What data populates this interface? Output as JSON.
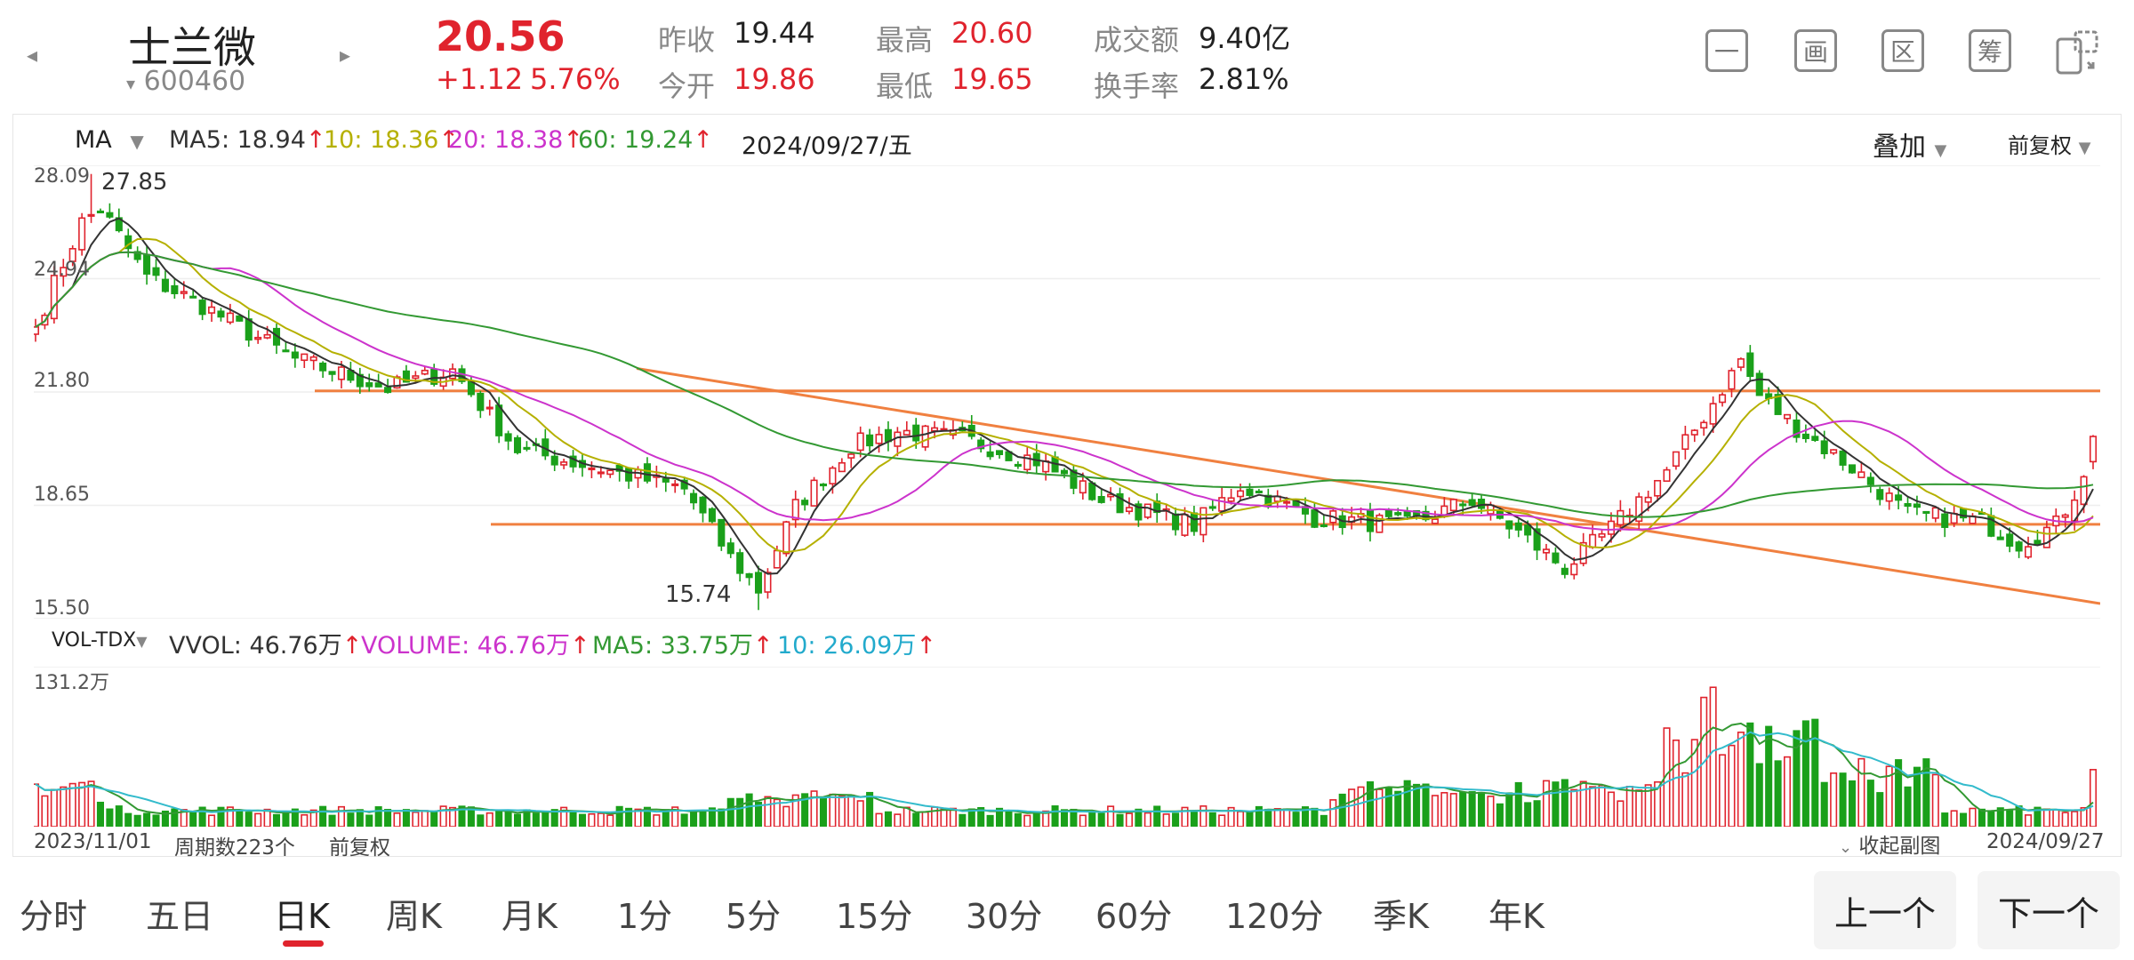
{
  "stock": {
    "name": "士兰微",
    "code": "600460",
    "price": "20.56",
    "change": "+1.12",
    "change_pct": "5.76%",
    "prev_close_label": "昨收",
    "prev_close": "19.44",
    "open_label": "今开",
    "open": "19.86",
    "high_label": "最高",
    "high": "20.60",
    "low_label": "最低",
    "low": "19.65",
    "turnover_label": "成交额",
    "turnover": "9.40亿",
    "turnover_rate_label": "换手率",
    "turnover_rate": "2.81%"
  },
  "toolbar": {
    "icons": [
      {
        "name": "minus-box-icon",
        "glyph": "一"
      },
      {
        "name": "draw-box-icon",
        "glyph": "画"
      },
      {
        "name": "range-box-icon",
        "glyph": "区"
      },
      {
        "name": "chip-box-icon",
        "glyph": "筹"
      },
      {
        "name": "landscape-rotate-icon",
        "glyph": ""
      }
    ]
  },
  "indicator_bar": {
    "main_indicator": "MA",
    "ma5": "MA5: 18.94",
    "ma10": "10: 18.36",
    "ma20": "20: 18.38",
    "ma60": "60: 19.24",
    "date": "2024/09/27/五",
    "overlay": "叠加",
    "adjust": "前复权"
  },
  "price_axis": {
    "ticks": [
      "28.09",
      "24.94",
      "21.80",
      "18.65",
      "15.50"
    ],
    "max_label": "27.85",
    "min_label": "15.74"
  },
  "volume_bar": {
    "indicator": "VOL-TDX",
    "vvol": "VVOL: 46.76万",
    "volume": "VOLUME: 46.76万",
    "ma5": "MA5: 33.75万",
    "ma10": "10: 26.09万",
    "axis_max": "131.2万"
  },
  "footer": {
    "start_date": "2023/11/01",
    "period_count": "周期数223个",
    "adjust": "前复权",
    "collapse": "收起副图",
    "end_date": "2024/09/27"
  },
  "tabs": [
    "分时",
    "五日",
    "日K",
    "周K",
    "月K",
    "1分",
    "5分",
    "15分",
    "30分",
    "60分",
    "120分",
    "季K",
    "年K"
  ],
  "active_tab": "日K",
  "nav": {
    "prev": "上一个",
    "next": "下一个"
  },
  "colors": {
    "up": "#e0232d",
    "down": "#1aa01a",
    "ma5": "#333333",
    "ma10": "#b5b000",
    "ma20": "#cc33cc",
    "ma60": "#339933",
    "vol_ma5": "#339933",
    "vol_ma10": "#33bbcc",
    "trendline": "#f08040"
  },
  "chart_data": {
    "type": "candlestick",
    "x_range": [
      "2023/11/01",
      "2024/09/27"
    ],
    "period_count": 223,
    "ylim": [
      15.5,
      28.09
    ],
    "close_anchors": [
      [
        0,
        23.6
      ],
      [
        2,
        24.8
      ],
      [
        5,
        26.5
      ],
      [
        7,
        26.9
      ],
      [
        12,
        25.0
      ],
      [
        18,
        24.2
      ],
      [
        28,
        22.7
      ],
      [
        38,
        21.9
      ],
      [
        45,
        22.4
      ],
      [
        52,
        20.2
      ],
      [
        62,
        19.6
      ],
      [
        70,
        19.1
      ],
      [
        75,
        17.2
      ],
      [
        78,
        16.3
      ],
      [
        82,
        18.6
      ],
      [
        88,
        20.3
      ],
      [
        93,
        20.7
      ],
      [
        100,
        20.5
      ],
      [
        108,
        19.9
      ],
      [
        115,
        18.8
      ],
      [
        125,
        18.1
      ],
      [
        130,
        19.2
      ],
      [
        138,
        18.3
      ],
      [
        148,
        18.1
      ],
      [
        155,
        18.8
      ],
      [
        160,
        17.9
      ],
      [
        165,
        16.9
      ],
      [
        170,
        18.0
      ],
      [
        176,
        19.6
      ],
      [
        181,
        21.5
      ],
      [
        184,
        22.7
      ],
      [
        186,
        21.7
      ],
      [
        190,
        20.8
      ],
      [
        196,
        19.7
      ],
      [
        202,
        18.4
      ],
      [
        210,
        18.2
      ],
      [
        214,
        17.6
      ],
      [
        218,
        18.1
      ],
      [
        221,
        19.44
      ],
      [
        222,
        20.56
      ]
    ],
    "high_max": 27.85,
    "low_min": 15.74,
    "volume_max": 131.2,
    "volume_unit": "万",
    "last_volume": 46.76
  }
}
